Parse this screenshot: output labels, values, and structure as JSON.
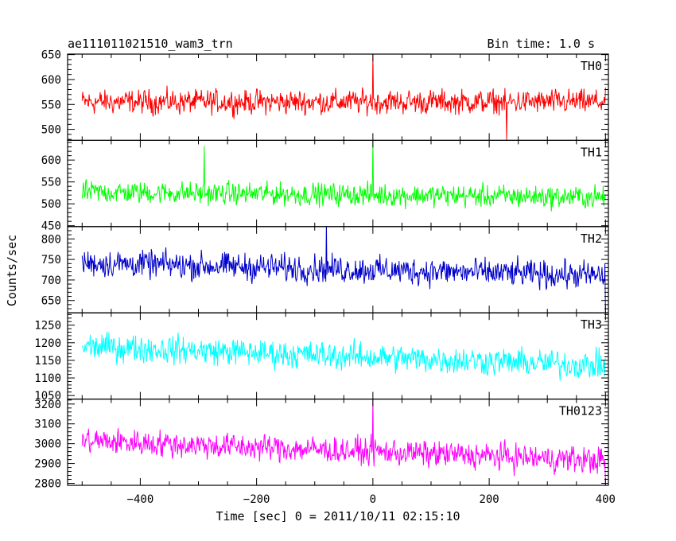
{
  "header": {
    "title": "ae111011021510_wam3_trn",
    "bin_time": "Bin time: 1.0 s"
  },
  "chart_data": {
    "type": "line",
    "ylabel": "Counts/sec",
    "xlabel": "Time [sec] 0 = 2011/10/11 02:15:10",
    "xlim": [
      -525,
      405
    ],
    "x_ticks": [
      -400,
      -200,
      0,
      200,
      400
    ],
    "x_tick_labels": [
      "−400",
      "−200",
      "0",
      "200",
      "400"
    ],
    "x_minor_step": 50,
    "time_range": [
      -500,
      400
    ],
    "bin_time_sec": 1.0,
    "panels": [
      {
        "name": "TH0",
        "color": "#ff0000",
        "ylim": [
          478,
          651
        ],
        "y_ticks": [
          500,
          550,
          600,
          650
        ],
        "y_tick_labels": [
          "500",
          "550",
          "600",
          "650"
        ],
        "y_minor_step": 10,
        "mean_start": 555,
        "mean_end": 555,
        "noise_halfwidth": 40,
        "features": [
          {
            "x": 0,
            "value": 651
          },
          {
            "x": 230,
            "value": 478
          }
        ]
      },
      {
        "name": "TH1",
        "color": "#00ff00",
        "ylim": [
          448,
          645
        ],
        "y_ticks": [
          450,
          500,
          550,
          600
        ],
        "y_tick_labels": [
          "450",
          "500",
          "550",
          "600"
        ],
        "y_minor_step": 10,
        "mean_start": 527,
        "mean_end": 515,
        "noise_halfwidth": 42,
        "features": [
          {
            "x": 0,
            "value": 648
          },
          {
            "x": -290,
            "value": 632
          }
        ]
      },
      {
        "name": "TH2",
        "color": "#0000cc",
        "ylim": [
          620,
          830
        ],
        "y_ticks": [
          650,
          700,
          750,
          800
        ],
        "y_tick_labels": [
          "650",
          "700",
          "750",
          "800"
        ],
        "y_minor_step": 10,
        "mean_start": 742,
        "mean_end": 710,
        "noise_halfwidth": 55,
        "features": [
          {
            "x": 400,
            "value": 620
          },
          {
            "x": -80,
            "value": 840
          }
        ]
      },
      {
        "name": "TH3",
        "color": "#00ffff",
        "ylim": [
          1040,
          1285
        ],
        "y_ticks": [
          1050,
          1100,
          1150,
          1200,
          1250
        ],
        "y_tick_labels": [
          "1050",
          "1100",
          "1150",
          "1200",
          "1250"
        ],
        "y_minor_step": 10,
        "mean_start": 1190,
        "mean_end": 1135,
        "noise_halfwidth": 65,
        "features": []
      },
      {
        "name": "TH0123",
        "color": "#ff00ff",
        "ylim": [
          2790,
          3225
        ],
        "y_ticks": [
          2800,
          2900,
          3000,
          3100,
          3200
        ],
        "y_tick_labels": [
          "2800",
          "2900",
          "3000",
          "3100",
          "3200"
        ],
        "y_minor_step": 20,
        "mean_start": 3015,
        "mean_end": 2915,
        "noise_halfwidth": 110,
        "features": [
          {
            "x": 0,
            "value": 3230
          },
          {
            "x": 400,
            "value": 2790
          }
        ]
      }
    ]
  }
}
